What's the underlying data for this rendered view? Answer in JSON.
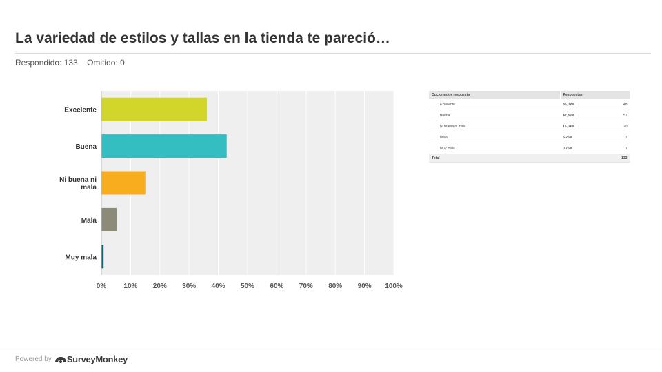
{
  "page": {
    "title": "La variedad de estilos y tallas en la tienda te pareció…",
    "answered": "Respondido: 133",
    "skipped": "Omitido: 0"
  },
  "chart_data": {
    "type": "bar",
    "orientation": "horizontal",
    "categories": [
      "Excelente",
      "Buena",
      "Ni buena ni mala",
      "Mala",
      "Muy mala"
    ],
    "category_labels": [
      [
        "Excelente"
      ],
      [
        "Buena"
      ],
      [
        "Ni buena ni",
        "mala"
      ],
      [
        "Mala"
      ],
      [
        "Muy mala"
      ]
    ],
    "values": [
      36.09,
      42.86,
      15.04,
      5.26,
      0.75
    ],
    "colors": [
      "#d2d62a",
      "#34bec2",
      "#f7ad1e",
      "#8c8b7a",
      "#1d5f72"
    ],
    "xlim": [
      0,
      100
    ],
    "xticks": [
      "0%",
      "10%",
      "20%",
      "30%",
      "40%",
      "50%",
      "60%",
      "70%",
      "80%",
      "90%",
      "100%"
    ],
    "grid": true,
    "background": "#efefef"
  },
  "table": {
    "headers": [
      "Opciones de respuesta",
      "Respuestas"
    ],
    "rows": [
      {
        "option": "Excelente",
        "percent": "36,09%",
        "count": "48"
      },
      {
        "option": "Buena",
        "percent": "42,86%",
        "count": "57"
      },
      {
        "option": "Ni buena ni mala",
        "percent": "15,04%",
        "count": "20"
      },
      {
        "option": "Mala",
        "percent": "5,26%",
        "count": "7"
      },
      {
        "option": "Muy mala",
        "percent": "0,75%",
        "count": "1"
      }
    ],
    "total_label": "Total",
    "total_count": "133"
  },
  "footer": {
    "powered": "Powered by",
    "brand": "SurveyMonkey"
  }
}
